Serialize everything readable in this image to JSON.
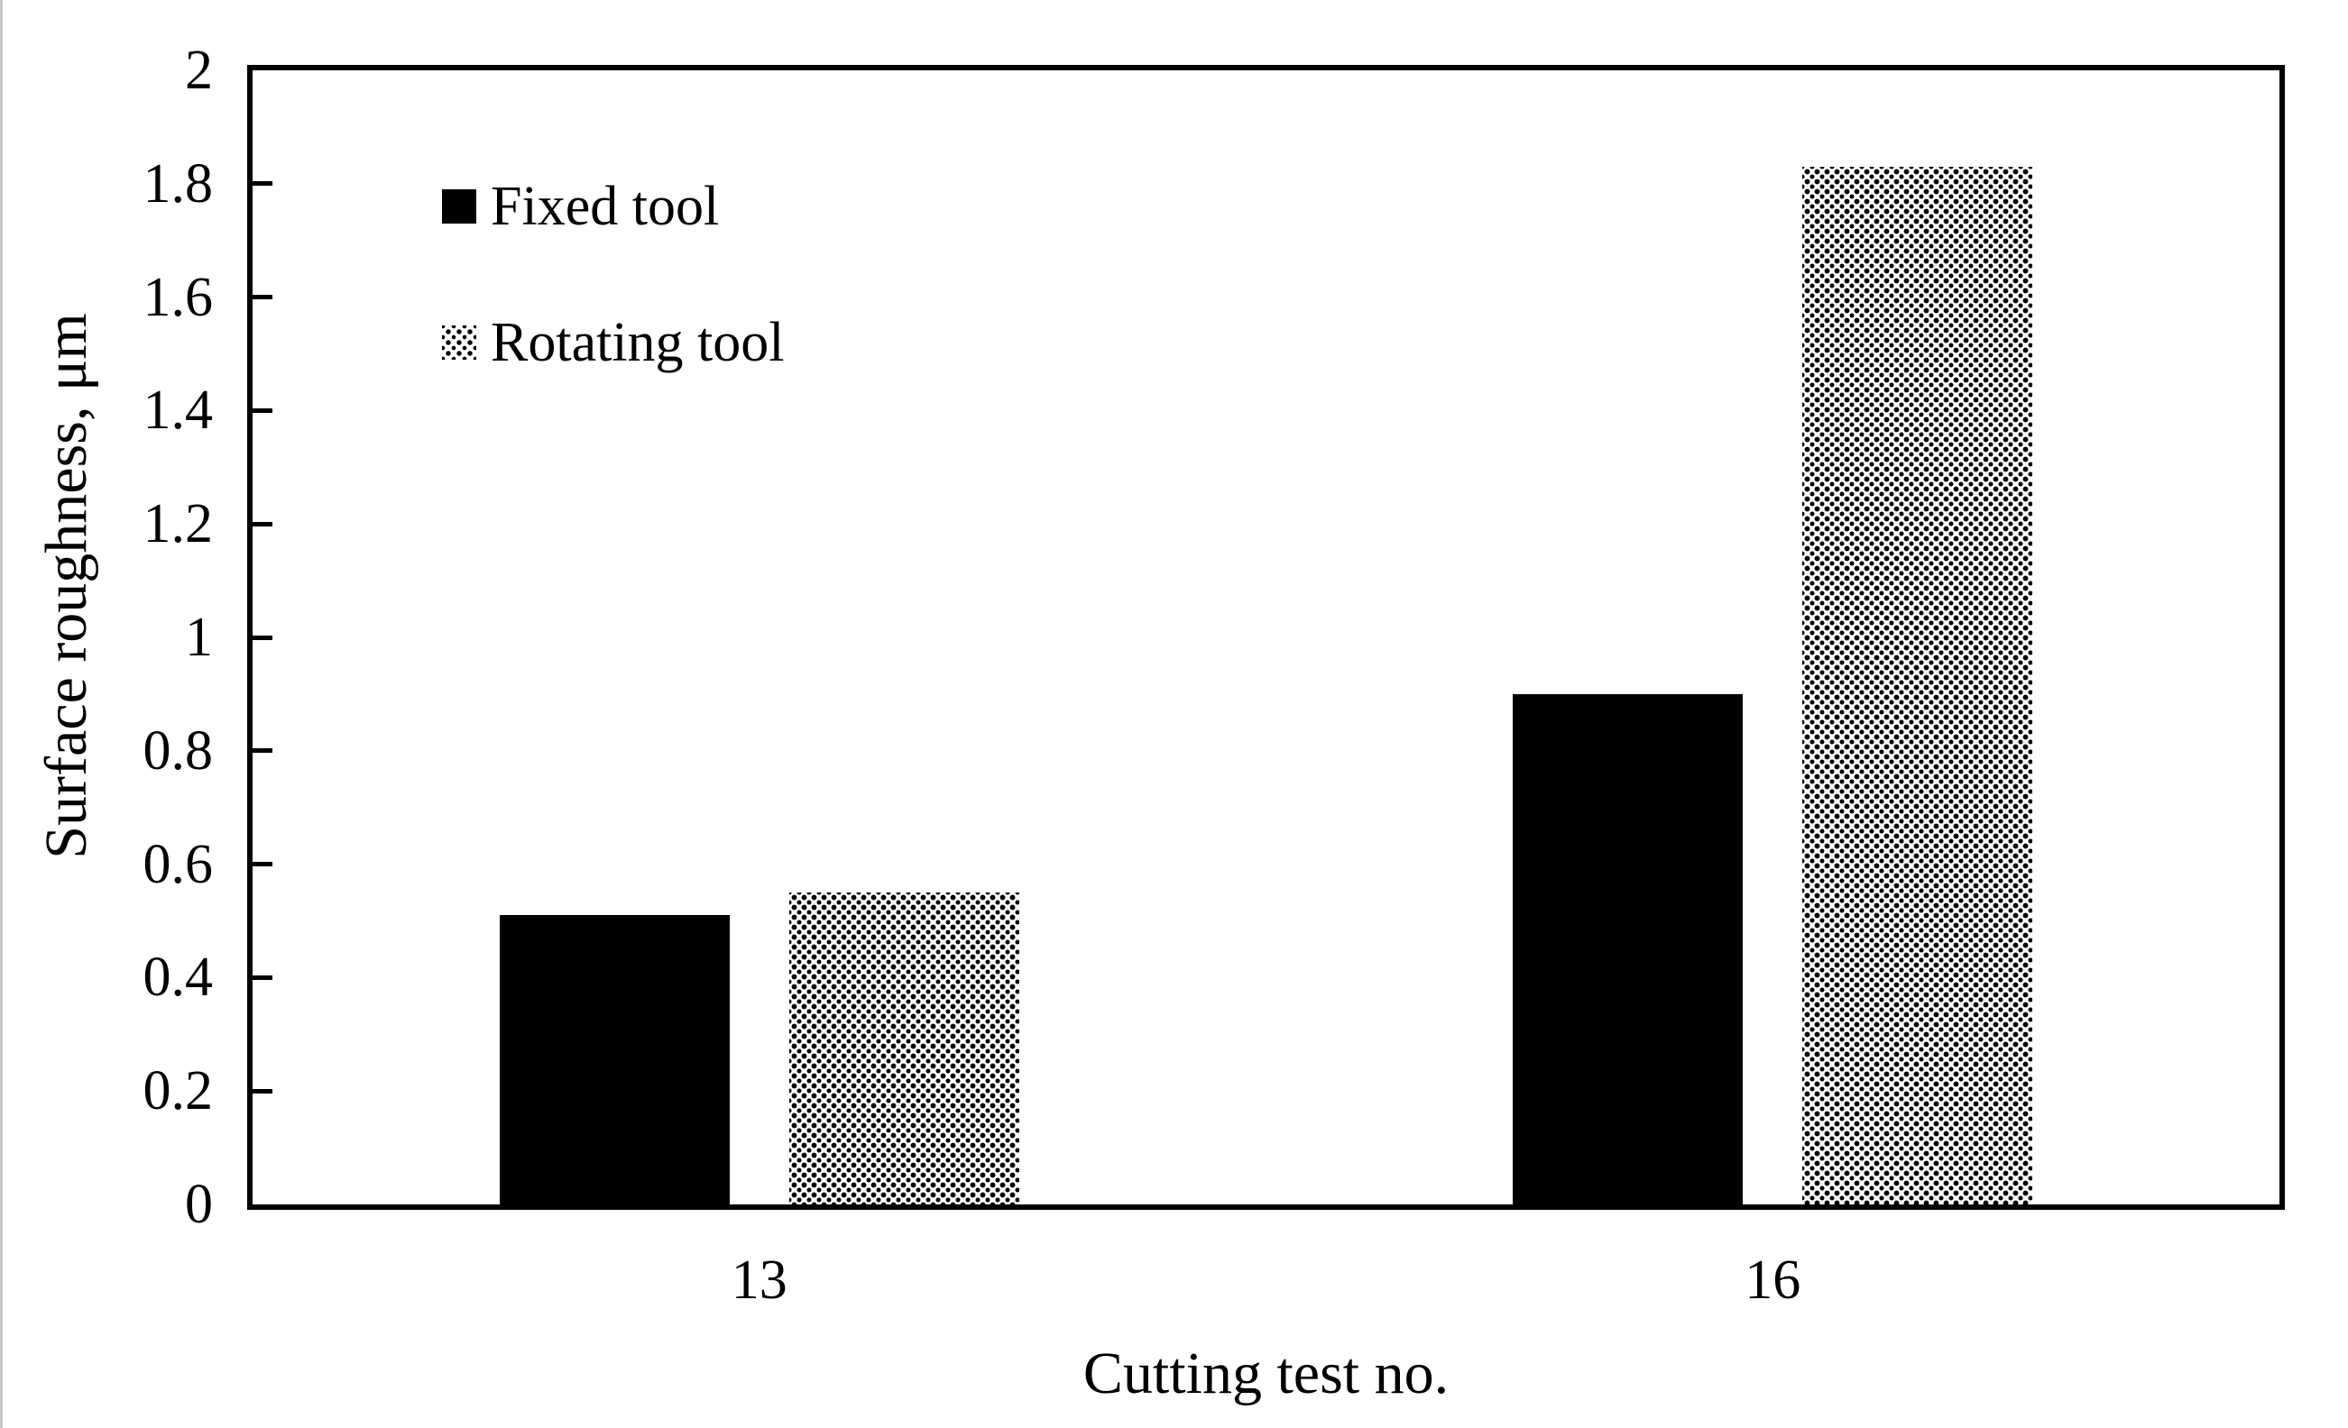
{
  "chart_data": {
    "type": "bar",
    "title": "",
    "categories": [
      "13",
      "16"
    ],
    "series": [
      {
        "name": "Fixed tool",
        "values": [
          0.51,
          0.9
        ],
        "fill": "solid-black"
      },
      {
        "name": "Rotating tool",
        "values": [
          0.55,
          1.83
        ],
        "fill": "dotted-halftone"
      }
    ],
    "xlabel": "Cutting test no.",
    "ylabel": "Surface roughness, μm",
    "ylim": [
      0,
      2
    ],
    "ytick_step": 0.2,
    "yticks": [
      0,
      0.2,
      0.4,
      0.6,
      0.8,
      1,
      1.2,
      1.4,
      1.6,
      1.8,
      2
    ],
    "ytick_labels": [
      "0",
      "0.2",
      "0.4",
      "0.6",
      "0.8",
      "1",
      "1.2",
      "1.4",
      "1.6",
      "1.8",
      "2"
    ],
    "grid": false,
    "legend_position": "inside-top-left",
    "colors": {
      "foreground": "#000000",
      "background": "#ffffff"
    }
  }
}
